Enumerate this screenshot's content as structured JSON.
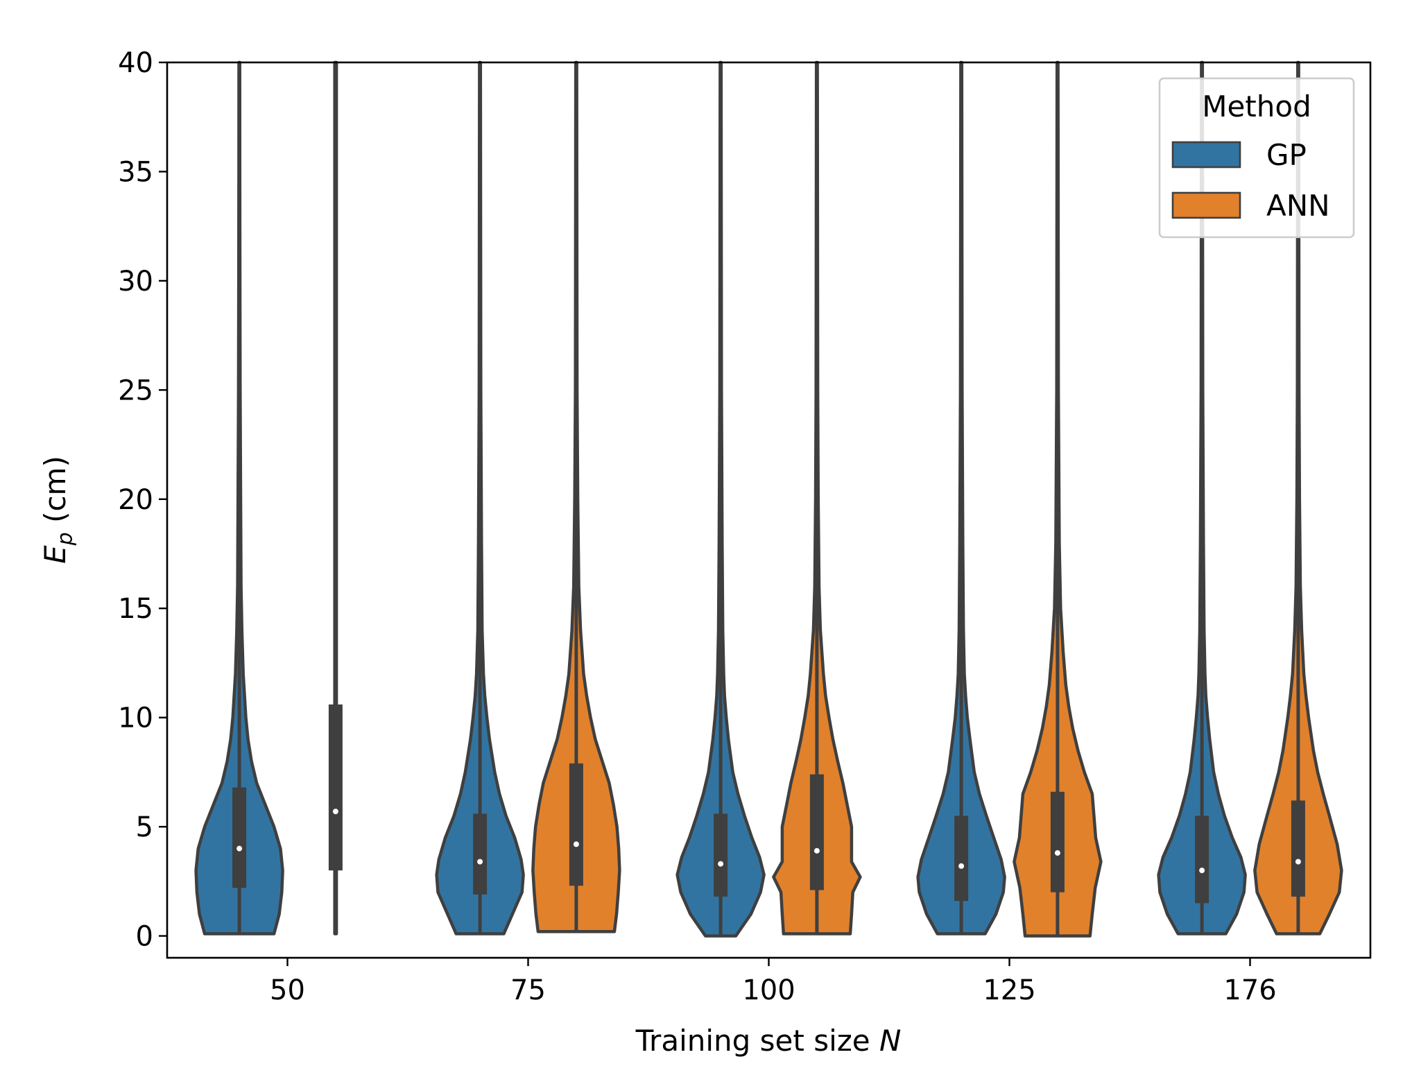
{
  "chart_data": {
    "type": "violin",
    "title": "",
    "xlabel": "Training set size",
    "xlabel_var": "N",
    "ylabel_var": "E",
    "ylabel_sub": "p",
    "ylabel_unit": " (cm)",
    "ylim": [
      -1,
      40
    ],
    "yticks": [
      0,
      5,
      10,
      15,
      20,
      25,
      30,
      35,
      40
    ],
    "categories": [
      "50",
      "75",
      "100",
      "125",
      "176"
    ],
    "legend": {
      "title": "Method",
      "position": "top-right",
      "entries": [
        {
          "label": "GP",
          "color": "#3274a1"
        },
        {
          "label": "ANN",
          "color": "#e1812c"
        }
      ]
    },
    "series": [
      {
        "name": "GP",
        "color": "#3274a1",
        "violins": [
          {
            "category": "50",
            "median": 4.0,
            "q1": 2.2,
            "q3": 6.8,
            "min": 0.1,
            "max": 40,
            "profile": [
              [
                0.1,
                0.8
              ],
              [
                1,
                0.92
              ],
              [
                2,
                0.98
              ],
              [
                3,
                1.0
              ],
              [
                4,
                0.95
              ],
              [
                5,
                0.8
              ],
              [
                6,
                0.6
              ],
              [
                7,
                0.4
              ],
              [
                8,
                0.28
              ],
              [
                9,
                0.2
              ],
              [
                10,
                0.15
              ],
              [
                12,
                0.09
              ],
              [
                14,
                0.06
              ],
              [
                16,
                0.04
              ],
              [
                20,
                0.03
              ],
              [
                25,
                0.02
              ],
              [
                30,
                0.015
              ],
              [
                35,
                0.012
              ],
              [
                40,
                0.01
              ]
            ]
          },
          {
            "category": "75",
            "median": 3.4,
            "q1": 1.9,
            "q3": 5.6,
            "min": 0.1,
            "max": 40,
            "profile": [
              [
                0.1,
                0.55
              ],
              [
                1,
                0.75
              ],
              [
                2,
                0.97
              ],
              [
                2.8,
                1.0
              ],
              [
                3.5,
                0.95
              ],
              [
                4.5,
                0.8
              ],
              [
                5.5,
                0.6
              ],
              [
                6.5,
                0.45
              ],
              [
                7.5,
                0.34
              ],
              [
                9,
                0.22
              ],
              [
                10,
                0.16
              ],
              [
                11,
                0.11
              ],
              [
                12,
                0.08
              ],
              [
                14,
                0.05
              ],
              [
                18,
                0.035
              ],
              [
                25,
                0.02
              ],
              [
                40,
                0.012
              ]
            ]
          },
          {
            "category": "100",
            "median": 3.3,
            "q1": 1.8,
            "q3": 5.6,
            "min": 0,
            "max": 40,
            "profile": [
              [
                0,
                0.35
              ],
              [
                1,
                0.7
              ],
              [
                2,
                0.92
              ],
              [
                2.8,
                1.0
              ],
              [
                3.6,
                0.9
              ],
              [
                4.5,
                0.72
              ],
              [
                5.5,
                0.55
              ],
              [
                6.5,
                0.4
              ],
              [
                7.5,
                0.28
              ],
              [
                9,
                0.18
              ],
              [
                10,
                0.13
              ],
              [
                11,
                0.09
              ],
              [
                12,
                0.07
              ],
              [
                14,
                0.05
              ],
              [
                18,
                0.035
              ],
              [
                25,
                0.02
              ],
              [
                40,
                0.012
              ]
            ]
          },
          {
            "category": "125",
            "median": 3.2,
            "q1": 1.6,
            "q3": 5.5,
            "min": 0.1,
            "max": 40,
            "profile": [
              [
                0.1,
                0.55
              ],
              [
                1,
                0.8
              ],
              [
                2,
                0.97
              ],
              [
                2.7,
                1.0
              ],
              [
                3.5,
                0.92
              ],
              [
                4.5,
                0.75
              ],
              [
                5.5,
                0.58
              ],
              [
                6.5,
                0.42
              ],
              [
                7.5,
                0.3
              ],
              [
                9,
                0.2
              ],
              [
                10,
                0.14
              ],
              [
                11,
                0.1
              ],
              [
                12,
                0.07
              ],
              [
                14,
                0.05
              ],
              [
                18,
                0.035
              ],
              [
                25,
                0.02
              ],
              [
                40,
                0.012
              ]
            ]
          },
          {
            "category": "176",
            "median": 3.0,
            "q1": 1.5,
            "q3": 5.5,
            "min": 0.1,
            "max": 40,
            "profile": [
              [
                0.1,
                0.55
              ],
              [
                1,
                0.8
              ],
              [
                2,
                0.97
              ],
              [
                2.8,
                1.0
              ],
              [
                3.6,
                0.9
              ],
              [
                4.5,
                0.7
              ],
              [
                5.5,
                0.52
              ],
              [
                6.5,
                0.38
              ],
              [
                7.5,
                0.27
              ],
              [
                9,
                0.18
              ],
              [
                10,
                0.13
              ],
              [
                11,
                0.09
              ],
              [
                12,
                0.07
              ],
              [
                14,
                0.05
              ],
              [
                18,
                0.035
              ],
              [
                25,
                0.02
              ],
              [
                40,
                0.012
              ]
            ]
          }
        ]
      },
      {
        "name": "ANN",
        "color": "#e1812c",
        "violins": [
          {
            "category": "50",
            "median": 5.7,
            "q1": 3.0,
            "q3": 10.6,
            "min": 0.1,
            "max": 40,
            "profile": [
              [
                0.1,
                0.02
              ],
              [
                5,
                0.02
              ],
              [
                10,
                0.02
              ],
              [
                20,
                0.02
              ],
              [
                30,
                0.02
              ],
              [
                40,
                0.02
              ]
            ]
          },
          {
            "category": "75",
            "median": 4.2,
            "q1": 2.3,
            "q3": 7.9,
            "min": 0.2,
            "max": 40,
            "profile": [
              [
                0.2,
                0.88
              ],
              [
                1,
                0.93
              ],
              [
                2,
                0.97
              ],
              [
                3,
                1.0
              ],
              [
                4,
                0.98
              ],
              [
                5,
                0.94
              ],
              [
                6,
                0.86
              ],
              [
                7,
                0.76
              ],
              [
                8,
                0.6
              ],
              [
                9,
                0.44
              ],
              [
                10,
                0.33
              ],
              [
                11,
                0.24
              ],
              [
                12,
                0.17
              ],
              [
                14,
                0.1
              ],
              [
                16,
                0.06
              ],
              [
                20,
                0.035
              ],
              [
                25,
                0.02
              ],
              [
                40,
                0.012
              ]
            ]
          },
          {
            "category": "100",
            "median": 3.9,
            "q1": 2.1,
            "q3": 7.4,
            "min": 0.1,
            "max": 40,
            "profile": [
              [
                0.1,
                0.77
              ],
              [
                1,
                0.8
              ],
              [
                2,
                0.83
              ],
              [
                2.7,
                1.0
              ],
              [
                3.4,
                0.8
              ],
              [
                5,
                0.8
              ],
              [
                6,
                0.7
              ],
              [
                7,
                0.6
              ],
              [
                8,
                0.48
              ],
              [
                9,
                0.37
              ],
              [
                10,
                0.28
              ],
              [
                11,
                0.2
              ],
              [
                12,
                0.15
              ],
              [
                14,
                0.08
              ],
              [
                16,
                0.05
              ],
              [
                20,
                0.03
              ],
              [
                25,
                0.02
              ],
              [
                40,
                0.012
              ]
            ]
          },
          {
            "category": "125",
            "median": 3.8,
            "q1": 2.0,
            "q3": 6.6,
            "min": 0,
            "max": 40,
            "profile": [
              [
                0,
                0.75
              ],
              [
                1,
                0.8
              ],
              [
                2.2,
                0.87
              ],
              [
                3.4,
                1.0
              ],
              [
                4.5,
                0.88
              ],
              [
                6.5,
                0.8
              ],
              [
                7.5,
                0.62
              ],
              [
                8.5,
                0.47
              ],
              [
                9.5,
                0.35
              ],
              [
                10.5,
                0.26
              ],
              [
                11.5,
                0.19
              ],
              [
                13,
                0.13
              ],
              [
                15,
                0.07
              ],
              [
                18,
                0.04
              ],
              [
                25,
                0.02
              ],
              [
                40,
                0.012
              ]
            ]
          },
          {
            "category": "176",
            "median": 3.4,
            "q1": 1.8,
            "q3": 6.2,
            "min": 0.1,
            "max": 40,
            "profile": [
              [
                0.1,
                0.5
              ],
              [
                1,
                0.72
              ],
              [
                2,
                0.95
              ],
              [
                3,
                1.0
              ],
              [
                4.2,
                0.9
              ],
              [
                5.5,
                0.72
              ],
              [
                6.5,
                0.58
              ],
              [
                7.5,
                0.45
              ],
              [
                8.5,
                0.35
              ],
              [
                10,
                0.24
              ],
              [
                11,
                0.18
              ],
              [
                12,
                0.13
              ],
              [
                14,
                0.08
              ],
              [
                16,
                0.05
              ],
              [
                20,
                0.03
              ],
              [
                25,
                0.02
              ],
              [
                40,
                0.012
              ]
            ]
          }
        ]
      }
    ]
  }
}
